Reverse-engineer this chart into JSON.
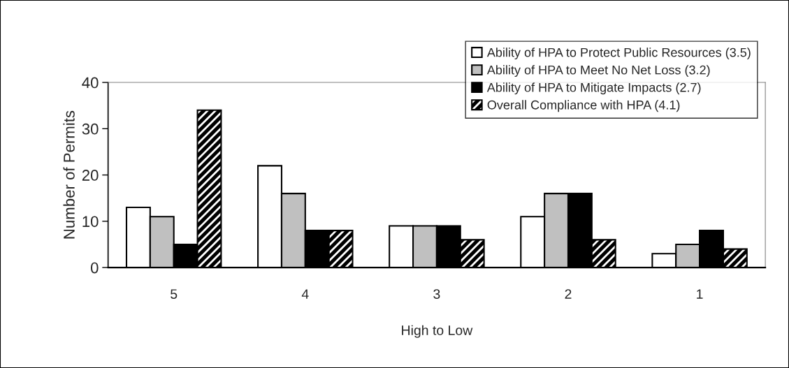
{
  "chart_data": {
    "type": "bar",
    "xlabel": "High to Low",
    "ylabel": "Number of Permits",
    "categories": [
      "5",
      "4",
      "3",
      "2",
      "1"
    ],
    "series": [
      {
        "name": "Ability of HPA to Protect Public Resources (3.5)",
        "color": "#ffffff",
        "values": [
          13,
          22,
          9,
          11,
          3
        ]
      },
      {
        "name": "Ability of HPA to Meet No Net Loss (3.2)",
        "color": "#c0c0c0",
        "values": [
          11,
          16,
          9,
          16,
          5
        ]
      },
      {
        "name": "Ability of HPA to Mitigate Impacts (2.7)",
        "color": "#000000",
        "values": [
          5,
          8,
          9,
          16,
          8
        ]
      },
      {
        "name": "Overall Compliance with HPA (4.1)",
        "color": "#000000",
        "values": [
          34,
          8,
          6,
          6,
          4
        ]
      }
    ],
    "ylim": [
      0,
      40
    ],
    "yticks": [
      0,
      10,
      20,
      30,
      40
    ],
    "grid": false,
    "legend": "top right"
  }
}
